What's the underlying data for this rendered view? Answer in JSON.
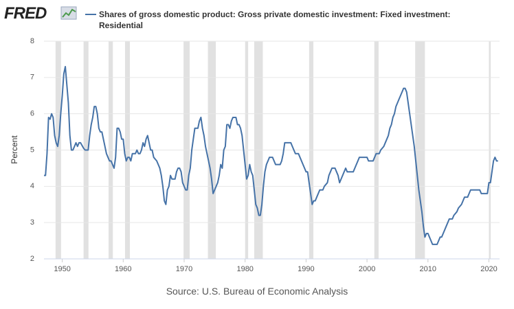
{
  "chart_data": {
    "type": "line",
    "logo": "FRED",
    "title": "Shares of gross domestic product: Gross private domestic investment: Fixed investment: Residential",
    "y_label": "Percent",
    "source": "Source: U.S. Bureau of Economic Analysis",
    "xlim": [
      1947,
      2021.75
    ],
    "xticks": [
      1950,
      1960,
      1970,
      1980,
      1990,
      2000,
      2010,
      2020
    ],
    "ylim": [
      2,
      8
    ],
    "yticks": [
      2,
      3,
      4,
      5,
      6,
      7,
      8
    ],
    "grid": true,
    "recession_color": "#e1e1e1",
    "recessions": [
      [
        1948.9,
        1949.8
      ],
      [
        1953.5,
        1954.3
      ],
      [
        1957.6,
        1958.3
      ],
      [
        1960.3,
        1961.1
      ],
      [
        1969.9,
        1970.9
      ],
      [
        1973.9,
        1975.2
      ],
      [
        1980.0,
        1980.5
      ],
      [
        1981.5,
        1982.9
      ],
      [
        1990.5,
        1991.2
      ],
      [
        2001.2,
        2001.9
      ],
      [
        2007.9,
        2009.5
      ],
      [
        2020.0,
        2020.3
      ]
    ],
    "series": [
      {
        "name": "Shares of gross domestic product: Gross private domestic investment: Fixed investment: Residential",
        "color": "#4572a7",
        "x": [
          1947.0,
          1947.25,
          1947.5,
          1947.75,
          1948.0,
          1948.25,
          1948.5,
          1948.75,
          1949.0,
          1949.25,
          1949.5,
          1949.75,
          1950.0,
          1950.25,
          1950.5,
          1950.75,
          1951.0,
          1951.25,
          1951.5,
          1951.75,
          1952.0,
          1952.25,
          1952.5,
          1952.75,
          1953.0,
          1953.5,
          1953.75,
          1954.25,
          1954.5,
          1954.75,
          1955.0,
          1955.25,
          1955.5,
          1955.75,
          1956.0,
          1956.25,
          1956.5,
          1956.75,
          1957.0,
          1957.25,
          1957.5,
          1957.75,
          1958.0,
          1958.25,
          1958.5,
          1958.75,
          1959.0,
          1959.25,
          1959.5,
          1959.75,
          1960.0,
          1960.25,
          1960.5,
          1960.75,
          1961.0,
          1961.25,
          1961.5,
          1961.75,
          1962.0,
          1962.25,
          1962.5,
          1962.75,
          1963.0,
          1963.25,
          1963.5,
          1963.75,
          1964.0,
          1964.25,
          1964.5,
          1964.75,
          1965.0,
          1965.5,
          1966.0,
          1966.25,
          1966.5,
          1966.75,
          1967.0,
          1967.25,
          1967.5,
          1967.75,
          1968.0,
          1968.5,
          1968.75,
          1969.0,
          1969.25,
          1969.5,
          1969.75,
          1970.0,
          1970.25,
          1970.5,
          1970.75,
          1971.0,
          1971.25,
          1971.5,
          1971.75,
          1972.0,
          1972.25,
          1972.5,
          1972.75,
          1973.0,
          1973.25,
          1973.5,
          1973.75,
          1974.0,
          1974.25,
          1974.5,
          1974.75,
          1975.0,
          1975.5,
          1975.75,
          1976.0,
          1976.25,
          1976.5,
          1976.75,
          1977.0,
          1977.25,
          1977.5,
          1977.75,
          1978.0,
          1978.5,
          1978.75,
          1979.0,
          1979.25,
          1979.5,
          1979.75,
          1980.0,
          1980.25,
          1980.5,
          1980.75,
          1981.0,
          1981.25,
          1981.5,
          1981.75,
          1982.0,
          1982.25,
          1982.5,
          1982.75,
          1983.0,
          1983.25,
          1983.5,
          1983.75,
          1984.0,
          1984.5,
          1984.75,
          1985.0,
          1985.5,
          1985.75,
          1986.0,
          1986.25,
          1986.5,
          1987.0,
          1987.5,
          1987.75,
          1988.0,
          1988.25,
          1988.75,
          1989.0,
          1989.5,
          1989.75,
          1990.0,
          1990.25,
          1990.5,
          1990.75,
          1991.0,
          1991.25,
          1991.5,
          1991.75,
          1992.0,
          1992.25,
          1992.75,
          1993.0,
          1993.5,
          1993.75,
          1994.0,
          1994.25,
          1994.75,
          1995.0,
          1995.25,
          1995.5,
          1995.75,
          1996.0,
          1996.5,
          1996.75,
          1997.0,
          1997.75,
          1998.0,
          1998.5,
          1998.75,
          1999.0,
          1999.75,
          2000.0,
          2000.25,
          2001.0,
          2001.25,
          2001.5,
          2002.0,
          2002.25,
          2002.75,
          2003.0,
          2003.5,
          2003.75,
          2004.0,
          2004.25,
          2004.5,
          2004.75,
          2005.25,
          2005.5,
          2005.75,
          2006.0,
          2006.25,
          2006.5,
          2006.75,
          2007.0,
          2007.25,
          2007.75,
          2008.0,
          2008.25,
          2008.5,
          2008.75,
          2009.0,
          2009.25,
          2009.5,
          2009.75,
          2010.0,
          2010.25,
          2010.5,
          2010.75,
          2011.0,
          2011.5,
          2011.75,
          2012.0,
          2012.25,
          2012.75,
          2013.0,
          2013.5,
          2014.0,
          2014.25,
          2014.75,
          2015.0,
          2015.5,
          2015.75,
          2016.0,
          2016.5,
          2016.75,
          2017.0,
          2018.0,
          2018.5,
          2018.75,
          2019.0,
          2019.75,
          2020.0,
          2020.25,
          2020.5,
          2020.75,
          2021.0,
          2021.25,
          2021.5
        ],
        "values": [
          4.3,
          4.3,
          4.9,
          5.9,
          5.85,
          6.0,
          5.9,
          5.4,
          5.2,
          5.1,
          5.4,
          6.0,
          6.5,
          7.1,
          7.3,
          6.8,
          6.3,
          5.4,
          5.0,
          5.0,
          5.1,
          5.2,
          5.1,
          5.2,
          5.2,
          5.05,
          5.0,
          5.0,
          5.4,
          5.7,
          5.9,
          6.2,
          6.2,
          6.0,
          5.6,
          5.5,
          5.5,
          5.3,
          5.1,
          4.9,
          4.8,
          4.7,
          4.7,
          4.6,
          4.5,
          4.8,
          5.6,
          5.6,
          5.5,
          5.3,
          5.3,
          4.9,
          4.7,
          4.8,
          4.8,
          4.7,
          4.9,
          4.9,
          4.9,
          5.0,
          4.9,
          4.9,
          5.0,
          5.2,
          5.1,
          5.3,
          5.4,
          5.2,
          5.0,
          5.0,
          4.8,
          4.7,
          4.5,
          4.3,
          4.0,
          3.6,
          3.5,
          3.9,
          4.0,
          4.3,
          4.2,
          4.2,
          4.4,
          4.5,
          4.5,
          4.4,
          4.1,
          4.0,
          3.9,
          3.9,
          4.3,
          4.5,
          5.0,
          5.3,
          5.6,
          5.6,
          5.6,
          5.8,
          5.9,
          5.6,
          5.4,
          5.1,
          4.9,
          4.7,
          4.5,
          4.2,
          3.8,
          3.9,
          4.1,
          4.3,
          4.6,
          4.5,
          5.0,
          5.1,
          5.7,
          5.7,
          5.6,
          5.8,
          5.9,
          5.9,
          5.7,
          5.7,
          5.6,
          5.4,
          5.0,
          4.6,
          4.2,
          4.3,
          4.6,
          4.4,
          4.3,
          3.9,
          3.5,
          3.4,
          3.2,
          3.2,
          3.5,
          4.0,
          4.4,
          4.6,
          4.7,
          4.8,
          4.8,
          4.7,
          4.6,
          4.6,
          4.6,
          4.7,
          4.9,
          5.2,
          5.2,
          5.2,
          5.1,
          5.0,
          4.9,
          4.9,
          4.8,
          4.6,
          4.5,
          4.4,
          4.4,
          4.1,
          3.8,
          3.5,
          3.6,
          3.6,
          3.7,
          3.8,
          3.9,
          3.9,
          4.0,
          4.1,
          4.3,
          4.4,
          4.5,
          4.5,
          4.4,
          4.3,
          4.1,
          4.2,
          4.3,
          4.5,
          4.4,
          4.4,
          4.4,
          4.5,
          4.7,
          4.8,
          4.8,
          4.8,
          4.8,
          4.7,
          4.7,
          4.8,
          4.9,
          4.9,
          5.0,
          5.1,
          5.2,
          5.4,
          5.6,
          5.7,
          5.9,
          6.0,
          6.2,
          6.4,
          6.5,
          6.6,
          6.7,
          6.7,
          6.6,
          6.3,
          6.0,
          5.7,
          5.1,
          4.7,
          4.3,
          3.9,
          3.6,
          3.3,
          2.9,
          2.6,
          2.7,
          2.7,
          2.6,
          2.5,
          2.4,
          2.4,
          2.4,
          2.5,
          2.6,
          2.6,
          2.8,
          2.9,
          3.1,
          3.1,
          3.2,
          3.3,
          3.4,
          3.5,
          3.6,
          3.7,
          3.7,
          3.8,
          3.9,
          3.9,
          3.9,
          3.8,
          3.8,
          3.8,
          4.1,
          4.1,
          4.4,
          4.7,
          4.8,
          4.7,
          4.7
        ]
      }
    ]
  }
}
